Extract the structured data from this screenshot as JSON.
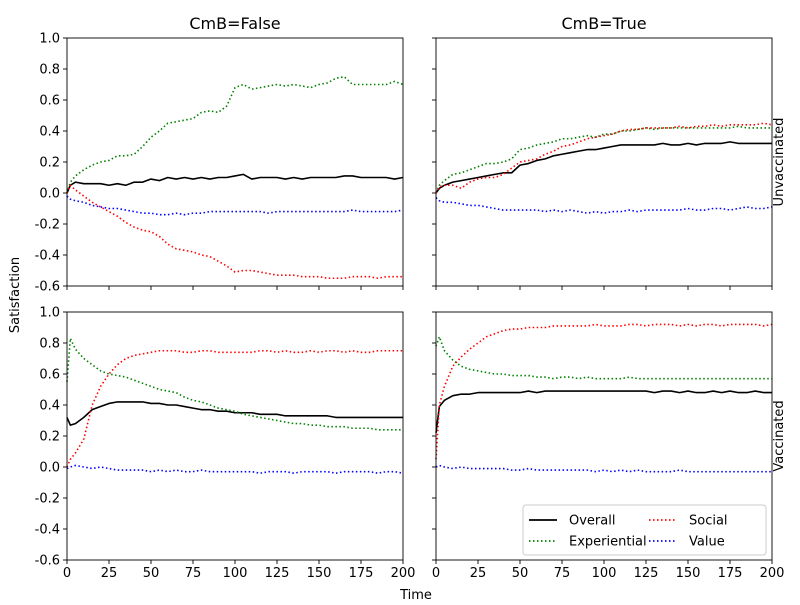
{
  "chart_data": {
    "type": "line",
    "ylabel": "Satisfaction",
    "xlabel": "Time",
    "xlim": [
      0,
      200
    ],
    "ylim": [
      -0.6,
      1.0
    ],
    "xticks": [
      0,
      25,
      50,
      75,
      100,
      125,
      150,
      175,
      200
    ],
    "yticks": [
      -0.6,
      -0.4,
      -0.2,
      0.0,
      0.2,
      0.4,
      0.6,
      0.8,
      1.0
    ],
    "grid": false,
    "legend_location": "lower-right of bottom-right panel",
    "columns": [
      "CmB=False",
      "CmB=True"
    ],
    "rows": [
      "Unvaccinated",
      "Vaccinated"
    ],
    "series_styles": [
      {
        "name": "Overall",
        "color": "#000000",
        "dash": "solid"
      },
      {
        "name": "Experiential",
        "color": "#008000",
        "dash": "dotted"
      },
      {
        "name": "Social",
        "color": "#ff0000",
        "dash": "dotted"
      },
      {
        "name": "Value",
        "color": "#0000ff",
        "dash": "dotted"
      }
    ],
    "x": [
      0,
      2,
      5,
      10,
      15,
      20,
      25,
      30,
      35,
      40,
      45,
      50,
      55,
      60,
      65,
      70,
      75,
      80,
      85,
      90,
      95,
      100,
      105,
      110,
      115,
      120,
      125,
      130,
      135,
      140,
      145,
      150,
      155,
      160,
      165,
      170,
      175,
      180,
      185,
      190,
      195,
      200
    ],
    "panels": [
      {
        "column": "CmB=False",
        "row": "Unvaccinated",
        "series": [
          {
            "name": "Overall",
            "values": [
              0.0,
              0.05,
              0.07,
              0.06,
              0.06,
              0.06,
              0.05,
              0.06,
              0.05,
              0.07,
              0.07,
              0.09,
              0.08,
              0.1,
              0.09,
              0.1,
              0.09,
              0.1,
              0.09,
              0.1,
              0.1,
              0.11,
              0.12,
              0.09,
              0.1,
              0.1,
              0.1,
              0.09,
              0.1,
              0.09,
              0.1,
              0.1,
              0.1,
              0.1,
              0.11,
              0.11,
              0.1,
              0.1,
              0.1,
              0.1,
              0.09,
              0.1
            ]
          },
          {
            "name": "Experiential",
            "values": [
              0.0,
              0.07,
              0.11,
              0.15,
              0.18,
              0.2,
              0.21,
              0.24,
              0.24,
              0.25,
              0.3,
              0.36,
              0.4,
              0.45,
              0.46,
              0.47,
              0.48,
              0.52,
              0.53,
              0.52,
              0.56,
              0.68,
              0.7,
              0.67,
              0.68,
              0.69,
              0.7,
              0.69,
              0.7,
              0.69,
              0.68,
              0.7,
              0.71,
              0.74,
              0.75,
              0.7,
              0.7,
              0.7,
              0.7,
              0.7,
              0.72,
              0.7
            ]
          },
          {
            "name": "Social",
            "values": [
              0.0,
              0.05,
              0.02,
              -0.02,
              -0.06,
              -0.09,
              -0.12,
              -0.15,
              -0.19,
              -0.22,
              -0.24,
              -0.25,
              -0.28,
              -0.33,
              -0.36,
              -0.37,
              -0.38,
              -0.4,
              -0.41,
              -0.44,
              -0.47,
              -0.51,
              -0.5,
              -0.5,
              -0.51,
              -0.52,
              -0.53,
              -0.53,
              -0.53,
              -0.54,
              -0.54,
              -0.54,
              -0.55,
              -0.55,
              -0.55,
              -0.54,
              -0.54,
              -0.54,
              -0.55,
              -0.54,
              -0.54,
              -0.54
            ]
          },
          {
            "name": "Value",
            "values": [
              -0.02,
              -0.04,
              -0.05,
              -0.06,
              -0.08,
              -0.09,
              -0.1,
              -0.1,
              -0.11,
              -0.12,
              -0.13,
              -0.13,
              -0.14,
              -0.14,
              -0.13,
              -0.14,
              -0.13,
              -0.13,
              -0.12,
              -0.12,
              -0.12,
              -0.12,
              -0.12,
              -0.12,
              -0.12,
              -0.13,
              -0.12,
              -0.12,
              -0.12,
              -0.12,
              -0.12,
              -0.12,
              -0.12,
              -0.12,
              -0.12,
              -0.11,
              -0.12,
              -0.12,
              -0.12,
              -0.12,
              -0.12,
              -0.11
            ]
          }
        ]
      },
      {
        "column": "CmB=True",
        "row": "Unvaccinated",
        "series": [
          {
            "name": "Overall",
            "values": [
              0.0,
              0.03,
              0.05,
              0.07,
              0.08,
              0.09,
              0.1,
              0.11,
              0.12,
              0.13,
              0.13,
              0.18,
              0.19,
              0.21,
              0.22,
              0.24,
              0.25,
              0.26,
              0.27,
              0.28,
              0.28,
              0.29,
              0.3,
              0.31,
              0.31,
              0.31,
              0.31,
              0.31,
              0.32,
              0.31,
              0.31,
              0.32,
              0.31,
              0.32,
              0.32,
              0.32,
              0.33,
              0.32,
              0.32,
              0.32,
              0.32,
              0.32
            ]
          },
          {
            "name": "Experiential",
            "values": [
              0.0,
              0.05,
              0.08,
              0.12,
              0.13,
              0.15,
              0.17,
              0.19,
              0.19,
              0.2,
              0.22,
              0.28,
              0.29,
              0.31,
              0.32,
              0.33,
              0.35,
              0.35,
              0.36,
              0.37,
              0.36,
              0.38,
              0.38,
              0.4,
              0.4,
              0.41,
              0.42,
              0.41,
              0.42,
              0.42,
              0.42,
              0.42,
              0.42,
              0.42,
              0.42,
              0.42,
              0.42,
              0.43,
              0.42,
              0.42,
              0.42,
              0.42
            ]
          },
          {
            "name": "Social",
            "values": [
              0.0,
              0.04,
              0.05,
              0.05,
              0.03,
              0.07,
              0.09,
              0.1,
              0.1,
              0.12,
              0.16,
              0.2,
              0.21,
              0.22,
              0.25,
              0.27,
              0.3,
              0.31,
              0.33,
              0.35,
              0.36,
              0.37,
              0.38,
              0.4,
              0.41,
              0.41,
              0.42,
              0.42,
              0.42,
              0.42,
              0.43,
              0.42,
              0.43,
              0.43,
              0.44,
              0.43,
              0.44,
              0.44,
              0.44,
              0.44,
              0.45,
              0.44
            ]
          },
          {
            "name": "Value",
            "values": [
              -0.03,
              -0.05,
              -0.06,
              -0.06,
              -0.07,
              -0.08,
              -0.08,
              -0.09,
              -0.1,
              -0.11,
              -0.11,
              -0.11,
              -0.11,
              -0.11,
              -0.12,
              -0.11,
              -0.12,
              -0.11,
              -0.12,
              -0.13,
              -0.12,
              -0.13,
              -0.12,
              -0.12,
              -0.11,
              -0.12,
              -0.11,
              -0.11,
              -0.11,
              -0.11,
              -0.11,
              -0.1,
              -0.11,
              -0.11,
              -0.1,
              -0.1,
              -0.11,
              -0.1,
              -0.09,
              -0.1,
              -0.1,
              -0.09
            ]
          }
        ]
      },
      {
        "column": "CmB=False",
        "row": "Vaccinated",
        "series": [
          {
            "name": "Overall",
            "values": [
              0.32,
              0.27,
              0.28,
              0.32,
              0.37,
              0.39,
              0.41,
              0.42,
              0.42,
              0.42,
              0.42,
              0.41,
              0.41,
              0.4,
              0.4,
              0.39,
              0.38,
              0.37,
              0.37,
              0.36,
              0.36,
              0.35,
              0.35,
              0.35,
              0.34,
              0.34,
              0.34,
              0.33,
              0.33,
              0.33,
              0.33,
              0.33,
              0.33,
              0.32,
              0.32,
              0.32,
              0.32,
              0.32,
              0.32,
              0.32,
              0.32,
              0.32
            ]
          },
          {
            "name": "Experiential",
            "values": [
              0.55,
              0.83,
              0.76,
              0.7,
              0.66,
              0.62,
              0.6,
              0.59,
              0.58,
              0.56,
              0.54,
              0.52,
              0.5,
              0.49,
              0.48,
              0.45,
              0.43,
              0.42,
              0.4,
              0.38,
              0.37,
              0.36,
              0.34,
              0.33,
              0.32,
              0.31,
              0.3,
              0.29,
              0.28,
              0.28,
              0.27,
              0.27,
              0.26,
              0.26,
              0.26,
              0.25,
              0.25,
              0.25,
              0.24,
              0.24,
              0.24,
              0.24
            ]
          },
          {
            "name": "Social",
            "values": [
              0.0,
              0.05,
              0.09,
              0.18,
              0.4,
              0.52,
              0.6,
              0.66,
              0.7,
              0.72,
              0.73,
              0.74,
              0.75,
              0.75,
              0.75,
              0.74,
              0.74,
              0.75,
              0.75,
              0.74,
              0.74,
              0.74,
              0.74,
              0.74,
              0.75,
              0.75,
              0.74,
              0.75,
              0.74,
              0.74,
              0.75,
              0.74,
              0.75,
              0.75,
              0.74,
              0.75,
              0.74,
              0.74,
              0.75,
              0.75,
              0.75,
              0.75
            ]
          },
          {
            "name": "Value",
            "values": [
              -0.01,
              0.0,
              0.01,
              0.0,
              -0.01,
              0.0,
              -0.01,
              -0.02,
              -0.02,
              -0.02,
              -0.02,
              -0.03,
              -0.02,
              -0.03,
              -0.02,
              -0.03,
              -0.03,
              -0.02,
              -0.03,
              -0.03,
              -0.03,
              -0.03,
              -0.03,
              -0.03,
              -0.04,
              -0.03,
              -0.03,
              -0.03,
              -0.04,
              -0.03,
              -0.03,
              -0.03,
              -0.03,
              -0.04,
              -0.03,
              -0.03,
              -0.03,
              -0.03,
              -0.04,
              -0.03,
              -0.03,
              -0.04
            ]
          }
        ]
      },
      {
        "column": "CmB=True",
        "row": "Vaccinated",
        "series": [
          {
            "name": "Overall",
            "values": [
              0.22,
              0.39,
              0.43,
              0.46,
              0.47,
              0.47,
              0.48,
              0.48,
              0.48,
              0.48,
              0.48,
              0.48,
              0.49,
              0.48,
              0.49,
              0.49,
              0.49,
              0.49,
              0.49,
              0.49,
              0.49,
              0.49,
              0.49,
              0.49,
              0.49,
              0.49,
              0.49,
              0.48,
              0.49,
              0.49,
              0.48,
              0.49,
              0.48,
              0.48,
              0.49,
              0.48,
              0.49,
              0.48,
              0.48,
              0.49,
              0.48,
              0.48
            ]
          },
          {
            "name": "Experiential",
            "values": [
              0.78,
              0.84,
              0.75,
              0.69,
              0.65,
              0.63,
              0.62,
              0.61,
              0.6,
              0.6,
              0.59,
              0.59,
              0.59,
              0.58,
              0.58,
              0.57,
              0.58,
              0.58,
              0.57,
              0.58,
              0.57,
              0.57,
              0.57,
              0.57,
              0.58,
              0.57,
              0.57,
              0.57,
              0.57,
              0.57,
              0.57,
              0.57,
              0.57,
              0.57,
              0.57,
              0.57,
              0.57,
              0.57,
              0.57,
              0.57,
              0.57,
              0.57
            ]
          },
          {
            "name": "Social",
            "values": [
              0.05,
              0.4,
              0.52,
              0.65,
              0.71,
              0.76,
              0.8,
              0.84,
              0.86,
              0.88,
              0.89,
              0.89,
              0.9,
              0.9,
              0.9,
              0.91,
              0.91,
              0.91,
              0.91,
              0.91,
              0.92,
              0.91,
              0.91,
              0.91,
              0.92,
              0.92,
              0.91,
              0.92,
              0.92,
              0.92,
              0.91,
              0.92,
              0.91,
              0.92,
              0.92,
              0.91,
              0.92,
              0.92,
              0.92,
              0.92,
              0.91,
              0.92
            ]
          },
          {
            "name": "Value",
            "values": [
              0.0,
              0.01,
              0.0,
              -0.01,
              0.0,
              -0.01,
              -0.01,
              -0.01,
              -0.01,
              -0.01,
              -0.02,
              -0.02,
              -0.01,
              -0.02,
              -0.02,
              -0.02,
              -0.02,
              -0.02,
              -0.02,
              -0.02,
              -0.03,
              -0.02,
              -0.03,
              -0.02,
              -0.03,
              -0.02,
              -0.03,
              -0.03,
              -0.03,
              -0.03,
              -0.02,
              -0.03,
              -0.03,
              -0.03,
              -0.03,
              -0.03,
              -0.03,
              -0.03,
              -0.03,
              -0.03,
              -0.03,
              -0.03
            ]
          }
        ]
      }
    ],
    "legend": [
      {
        "label": "Overall"
      },
      {
        "label": "Experiential"
      },
      {
        "label": "Social"
      },
      {
        "label": "Value"
      }
    ]
  }
}
